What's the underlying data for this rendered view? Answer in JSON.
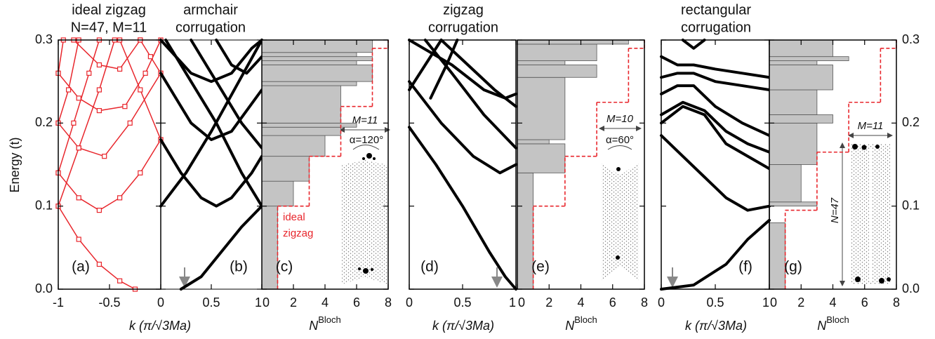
{
  "chart_data": [
    {
      "type": "line",
      "label": "(a)",
      "title": [
        "ideal zigzag",
        "N=47, M=11"
      ],
      "xlabel": "k (π/√3Ma)",
      "ylabel": "Energy (t)",
      "xlim": [
        -1,
        0
      ],
      "xticks": [
        -1,
        -0.5
      ],
      "ylim": [
        0,
        0.3
      ],
      "yticks": [
        {
          "value": 0,
          "label": "0.0"
        },
        {
          "value": 0.1,
          "label": "0.1"
        },
        {
          "value": 0.2,
          "label": "0.2"
        },
        {
          "value": 0.3,
          "label": "0.3"
        }
      ],
      "marker": "square",
      "series": [
        {
          "color": "#e8262c",
          "x": [
            -1,
            -0.8,
            -0.6,
            -0.4,
            -0.25
          ],
          "values": [
            0.1,
            0.06,
            0.03,
            0.01,
            0.0
          ]
        },
        {
          "color": "#e8262c",
          "x": [
            -1,
            -0.8,
            -0.6,
            -0.45
          ],
          "values": [
            0.1,
            0.17,
            0.24,
            0.3
          ]
        },
        {
          "color": "#e8262c",
          "x": [
            -1,
            -0.85,
            -0.7,
            -0.6
          ],
          "values": [
            0.14,
            0.2,
            0.26,
            0.3
          ]
        },
        {
          "color": "#e8262c",
          "x": [
            -1,
            -0.9,
            -0.8
          ],
          "values": [
            0.2,
            0.24,
            0.3
          ]
        },
        {
          "color": "#e8262c",
          "x": [
            -1,
            -0.95
          ],
          "values": [
            0.26,
            0.3
          ]
        },
        {
          "color": "#e8262c",
          "x": [
            -1,
            -0.8,
            -0.6,
            -0.4,
            -0.2,
            0
          ],
          "values": [
            0.14,
            0.11,
            0.095,
            0.11,
            0.14,
            0.18
          ]
        },
        {
          "color": "#e8262c",
          "x": [
            -1,
            -0.8,
            -0.55,
            -0.3,
            0
          ],
          "values": [
            0.2,
            0.17,
            0.16,
            0.2,
            0.26
          ]
        },
        {
          "color": "#e8262c",
          "x": [
            -1,
            -0.8,
            -0.6,
            -0.35,
            -0.15,
            0
          ],
          "values": [
            0.26,
            0.23,
            0.215,
            0.22,
            0.26,
            0.3
          ]
        },
        {
          "color": "#e8262c",
          "x": [
            -0.85,
            -0.6,
            -0.4,
            -0.2
          ],
          "values": [
            0.3,
            0.27,
            0.265,
            0.3
          ]
        },
        {
          "color": "#e8262c",
          "x": [
            -0.4,
            -0.2,
            0
          ],
          "values": [
            0.3,
            0.24,
            0.18
          ]
        },
        {
          "color": "#e8262c",
          "x": [
            -0.2,
            -0.1,
            0
          ],
          "values": [
            0.3,
            0.28,
            0.26
          ]
        }
      ]
    },
    {
      "type": "line",
      "label": "(b)",
      "title": [
        "armchair",
        "corrugation"
      ],
      "xlim": [
        0,
        1
      ],
      "xticks": [
        0,
        0.5,
        1
      ],
      "ylim": [
        0,
        0.3
      ],
      "series": [
        {
          "color": "#000000",
          "x": [
            0.2,
            0.4,
            0.6,
            0.8,
            1
          ],
          "values": [
            0.0,
            0.015,
            0.045,
            0.075,
            0.1
          ]
        },
        {
          "color": "#000000",
          "x": [
            0,
            0.25,
            0.5,
            0.75,
            1
          ],
          "values": [
            0.1,
            0.14,
            0.19,
            0.245,
            0.3
          ]
        },
        {
          "color": "#000000",
          "x": [
            0,
            0.2,
            0.4,
            0.55,
            0.7,
            0.9,
            1
          ],
          "values": [
            0.18,
            0.14,
            0.11,
            0.1,
            0.11,
            0.14,
            0.16
          ]
        },
        {
          "color": "#000000",
          "x": [
            0.05,
            0.3,
            0.55,
            0.8,
            1
          ],
          "values": [
            0.3,
            0.25,
            0.2,
            0.14,
            0.1
          ]
        },
        {
          "color": "#000000",
          "x": [
            0,
            0.3,
            0.5,
            0.7,
            1
          ],
          "values": [
            0.26,
            0.2,
            0.18,
            0.19,
            0.24
          ]
        },
        {
          "color": "#000000",
          "x": [
            0,
            0.3,
            0.5,
            0.7,
            0.9,
            1
          ],
          "values": [
            0.3,
            0.26,
            0.25,
            0.26,
            0.29,
            0.3
          ]
        },
        {
          "color": "#000000",
          "x": [
            0.3,
            0.55,
            0.8,
            1
          ],
          "values": [
            0.3,
            0.25,
            0.2,
            0.17
          ]
        },
        {
          "color": "#000000",
          "x": [
            0.55,
            0.7,
            0.85,
            1
          ],
          "values": [
            0.3,
            0.27,
            0.26,
            0.28
          ]
        }
      ]
    },
    {
      "type": "hist",
      "label": "(c)",
      "xlabel": "N",
      "xlabel_sup": "Bloch",
      "xlim": [
        0,
        8
      ],
      "xticks": [
        0,
        2,
        4,
        6,
        8
      ],
      "ylim": [
        0,
        0.3
      ],
      "gray": {
        "color": "#c4c4c4",
        "edges": [
          0,
          0.1,
          0.13,
          0.16,
          0.185,
          0.195,
          0.2,
          0.245,
          0.25,
          0.27,
          0.275,
          0.28,
          0.285,
          0.3
        ],
        "counts": [
          1,
          2,
          3,
          4,
          5,
          6,
          5,
          6,
          7,
          6,
          7,
          6,
          7
        ]
      },
      "ideal": {
        "color": "#e8262c",
        "edges": [
          0,
          0.1,
          0.16,
          0.22,
          0.29,
          0.3
        ],
        "values": [
          1,
          3,
          5,
          7,
          8
        ]
      },
      "annotations": [
        "ideal",
        "zigzag",
        "M=11",
        "α=120°"
      ]
    },
    {
      "type": "line",
      "label": "(d)",
      "title": [
        "zigzag",
        "corrugation"
      ],
      "xlabel": "k (π/√3Ma)",
      "xlim": [
        0,
        1
      ],
      "xticks": [
        0,
        0.5,
        1
      ],
      "ylim": [
        0,
        0.3
      ],
      "series": [
        {
          "color": "#000000",
          "x": [
            0,
            0.25,
            0.5,
            0.75,
            0.9,
            1
          ],
          "values": [
            0.195,
            0.15,
            0.1,
            0.045,
            0.015,
            0.0
          ]
        },
        {
          "color": "#000000",
          "x": [
            0,
            0.3,
            0.6,
            0.85,
            1
          ],
          "values": [
            0.25,
            0.2,
            0.16,
            0.14,
            0.15
          ]
        },
        {
          "color": "#000000",
          "x": [
            0,
            0.4,
            0.7,
            0.9,
            1
          ],
          "values": [
            0.3,
            0.27,
            0.24,
            0.23,
            0.235
          ]
        },
        {
          "color": "#000000",
          "x": [
            0.15,
            0.4,
            0.7,
            1
          ],
          "values": [
            0.3,
            0.26,
            0.21,
            0.17
          ]
        },
        {
          "color": "#000000",
          "x": [
            0.3,
            0.55,
            0.8,
            1
          ],
          "values": [
            0.3,
            0.27,
            0.24,
            0.22
          ]
        },
        {
          "color": "#000000",
          "x": [
            0,
            0.15,
            0.3
          ],
          "values": [
            0.24,
            0.27,
            0.3
          ]
        },
        {
          "color": "#000000",
          "x": [
            0.2,
            0.35,
            0.45
          ],
          "values": [
            0.23,
            0.27,
            0.3
          ]
        }
      ]
    },
    {
      "type": "hist",
      "label": "(e)",
      "xlabel": "N",
      "xlabel_sup": "Bloch",
      "xlim": [
        0,
        8
      ],
      "xticks": [
        0,
        2,
        4,
        6,
        8
      ],
      "ylim": [
        0,
        0.3
      ],
      "gray": {
        "color": "#c4c4c4",
        "edges": [
          0,
          0.14,
          0.175,
          0.18,
          0.255,
          0.27,
          0.275,
          0.295,
          0.3
        ],
        "counts": [
          1,
          3,
          2,
          3,
          5,
          3,
          5,
          7
        ]
      },
      "ideal": {
        "color": "#e8262c",
        "edges": [
          0,
          0.1,
          0.16,
          0.225,
          0.29,
          0.3
        ],
        "values": [
          1,
          3,
          5,
          7,
          8
        ]
      },
      "annotations": [
        "M=10",
        "α=60°"
      ]
    },
    {
      "type": "line",
      "label": "(f)",
      "title": [
        "rectangular",
        "corrugation"
      ],
      "xlabel": "k (π/√3Ma)",
      "xlim": [
        0,
        1
      ],
      "xticks": [
        0,
        0.5,
        1
      ],
      "ylim": [
        0,
        0.3
      ],
      "series": [
        {
          "color": "#000000",
          "x": [
            0,
            0.3,
            0.6,
            0.8,
            1
          ],
          "values": [
            0,
            0.005,
            0.03,
            0.06,
            0.083
          ]
        },
        {
          "color": "#000000",
          "x": [
            0,
            0.2,
            0.4,
            0.6,
            0.8,
            1
          ],
          "values": [
            0.185,
            0.16,
            0.135,
            0.11,
            0.095,
            0.1
          ]
        },
        {
          "color": "#000000",
          "x": [
            0,
            0.2,
            0.4,
            0.6,
            0.8,
            1
          ],
          "values": [
            0.2,
            0.22,
            0.21,
            0.175,
            0.16,
            0.145
          ]
        },
        {
          "color": "#000000",
          "x": [
            0,
            0.2,
            0.4,
            0.6,
            0.8,
            1
          ],
          "values": [
            0.21,
            0.225,
            0.215,
            0.19,
            0.175,
            0.165
          ]
        },
        {
          "color": "#000000",
          "x": [
            0,
            0.15,
            0.3,
            0.5,
            0.75,
            1
          ],
          "values": [
            0.235,
            0.245,
            0.245,
            0.22,
            0.2,
            0.185
          ]
        },
        {
          "color": "#000000",
          "x": [
            0,
            0.15,
            0.3,
            0.5,
            0.75,
            1
          ],
          "values": [
            0.255,
            0.26,
            0.26,
            0.25,
            0.245,
            0.24
          ]
        },
        {
          "color": "#000000",
          "x": [
            0,
            0.15,
            0.3,
            0.5,
            0.75,
            1
          ],
          "values": [
            0.28,
            0.27,
            0.27,
            0.265,
            0.26,
            0.255
          ]
        },
        {
          "color": "#000000",
          "x": [
            0.2,
            0.3,
            0.4
          ],
          "values": [
            0.3,
            0.29,
            0.3
          ]
        }
      ]
    },
    {
      "type": "hist",
      "label": "(g)",
      "xlabel": "N",
      "xlabel_sup": "Bloch",
      "xlim": [
        0,
        8
      ],
      "xticks": [
        0,
        2,
        4,
        6,
        8
      ],
      "ylim": [
        0,
        0.3
      ],
      "y2lim": [
        0,
        0.3
      ],
      "y2ticks": [
        {
          "value": 0,
          "label": "0.0"
        },
        {
          "value": 0.1,
          "label": "0.1"
        },
        {
          "value": 0.2,
          "label": "0.2"
        },
        {
          "value": 0.3,
          "label": "0.3"
        }
      ],
      "gray": {
        "color": "#c4c4c4",
        "edges": [
          0,
          0.08,
          0.1,
          0.105,
          0.15,
          0.2,
          0.21,
          0.24,
          0.27,
          0.275,
          0.28,
          0.3
        ],
        "counts": [
          1,
          0,
          3,
          2,
          3,
          4,
          3,
          4,
          3,
          5,
          4
        ]
      },
      "ideal": {
        "color": "#e8262c",
        "edges": [
          0,
          0.095,
          0.165,
          0.225,
          0.29,
          0.3
        ],
        "values": [
          1,
          3,
          5,
          7,
          8
        ]
      },
      "annotations": [
        "M=11",
        "N=47"
      ]
    }
  ]
}
